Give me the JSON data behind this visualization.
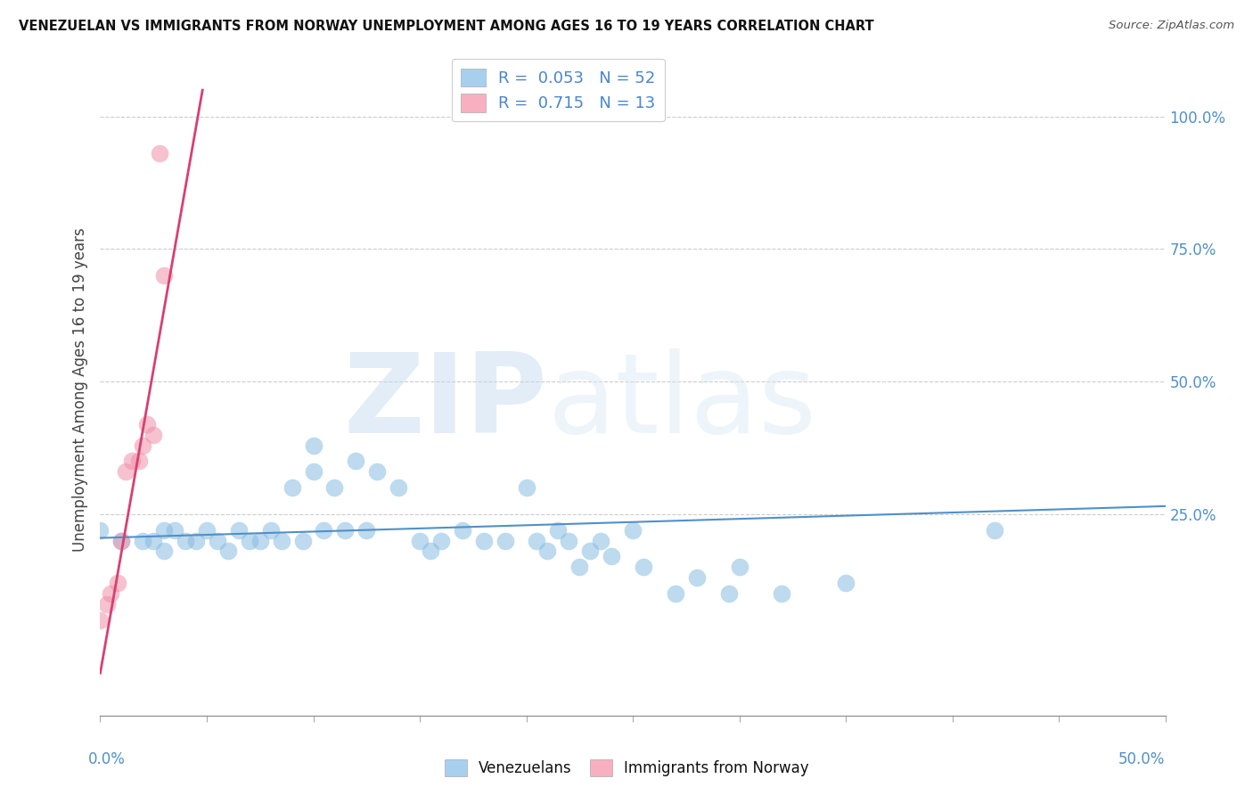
{
  "title": "VENEZUELAN VS IMMIGRANTS FROM NORWAY UNEMPLOYMENT AMONG AGES 16 TO 19 YEARS CORRELATION CHART",
  "source": "Source: ZipAtlas.com",
  "ylabel": "Unemployment Among Ages 16 to 19 years",
  "right_yticks": [
    "100.0%",
    "75.0%",
    "50.0%",
    "25.0%"
  ],
  "right_ytick_vals": [
    1.0,
    0.75,
    0.5,
    0.25
  ],
  "legend1_label": "R =  0.053   N = 52",
  "legend2_label": "R =  0.715   N = 13",
  "legend1_color": "#a8d0ee",
  "legend2_color": "#f8b0c0",
  "blue_color": "#88bce0",
  "pink_color": "#f090a8",
  "blue_line_color": "#5090c8",
  "pink_line_color": "#d84070",
  "watermark_zip": "ZIP",
  "watermark_atlas": "atlas",
  "xmin": 0.0,
  "xmax": 0.5,
  "ymin": -0.13,
  "ymax": 1.1,
  "venezuelan_x": [
    0.0,
    0.01,
    0.02,
    0.025,
    0.03,
    0.03,
    0.035,
    0.04,
    0.045,
    0.05,
    0.055,
    0.06,
    0.065,
    0.07,
    0.075,
    0.08,
    0.085,
    0.09,
    0.095,
    0.1,
    0.1,
    0.105,
    0.11,
    0.115,
    0.12,
    0.125,
    0.13,
    0.14,
    0.15,
    0.155,
    0.16,
    0.17,
    0.18,
    0.19,
    0.2,
    0.205,
    0.21,
    0.215,
    0.22,
    0.225,
    0.23,
    0.235,
    0.24,
    0.25,
    0.255,
    0.27,
    0.28,
    0.295,
    0.3,
    0.32,
    0.35,
    0.42
  ],
  "venezuelan_y": [
    0.22,
    0.2,
    0.2,
    0.2,
    0.22,
    0.18,
    0.22,
    0.2,
    0.2,
    0.22,
    0.2,
    0.18,
    0.22,
    0.2,
    0.2,
    0.22,
    0.2,
    0.3,
    0.2,
    0.38,
    0.33,
    0.22,
    0.3,
    0.22,
    0.35,
    0.22,
    0.33,
    0.3,
    0.2,
    0.18,
    0.2,
    0.22,
    0.2,
    0.2,
    0.3,
    0.2,
    0.18,
    0.22,
    0.2,
    0.15,
    0.18,
    0.2,
    0.17,
    0.22,
    0.15,
    0.1,
    0.13,
    0.1,
    0.15,
    0.1,
    0.12,
    0.22
  ],
  "norway_x": [
    0.0,
    0.003,
    0.005,
    0.008,
    0.01,
    0.012,
    0.015,
    0.018,
    0.02,
    0.022,
    0.025,
    0.028,
    0.03
  ],
  "norway_y": [
    0.05,
    0.08,
    0.1,
    0.12,
    0.2,
    0.33,
    0.35,
    0.35,
    0.38,
    0.42,
    0.4,
    0.93,
    0.7
  ],
  "blue_trend_x": [
    0.0,
    0.5
  ],
  "blue_trend_y": [
    0.205,
    0.265
  ],
  "pink_trend_x": [
    0.0,
    0.048
  ],
  "pink_trend_y": [
    -0.05,
    1.05
  ]
}
